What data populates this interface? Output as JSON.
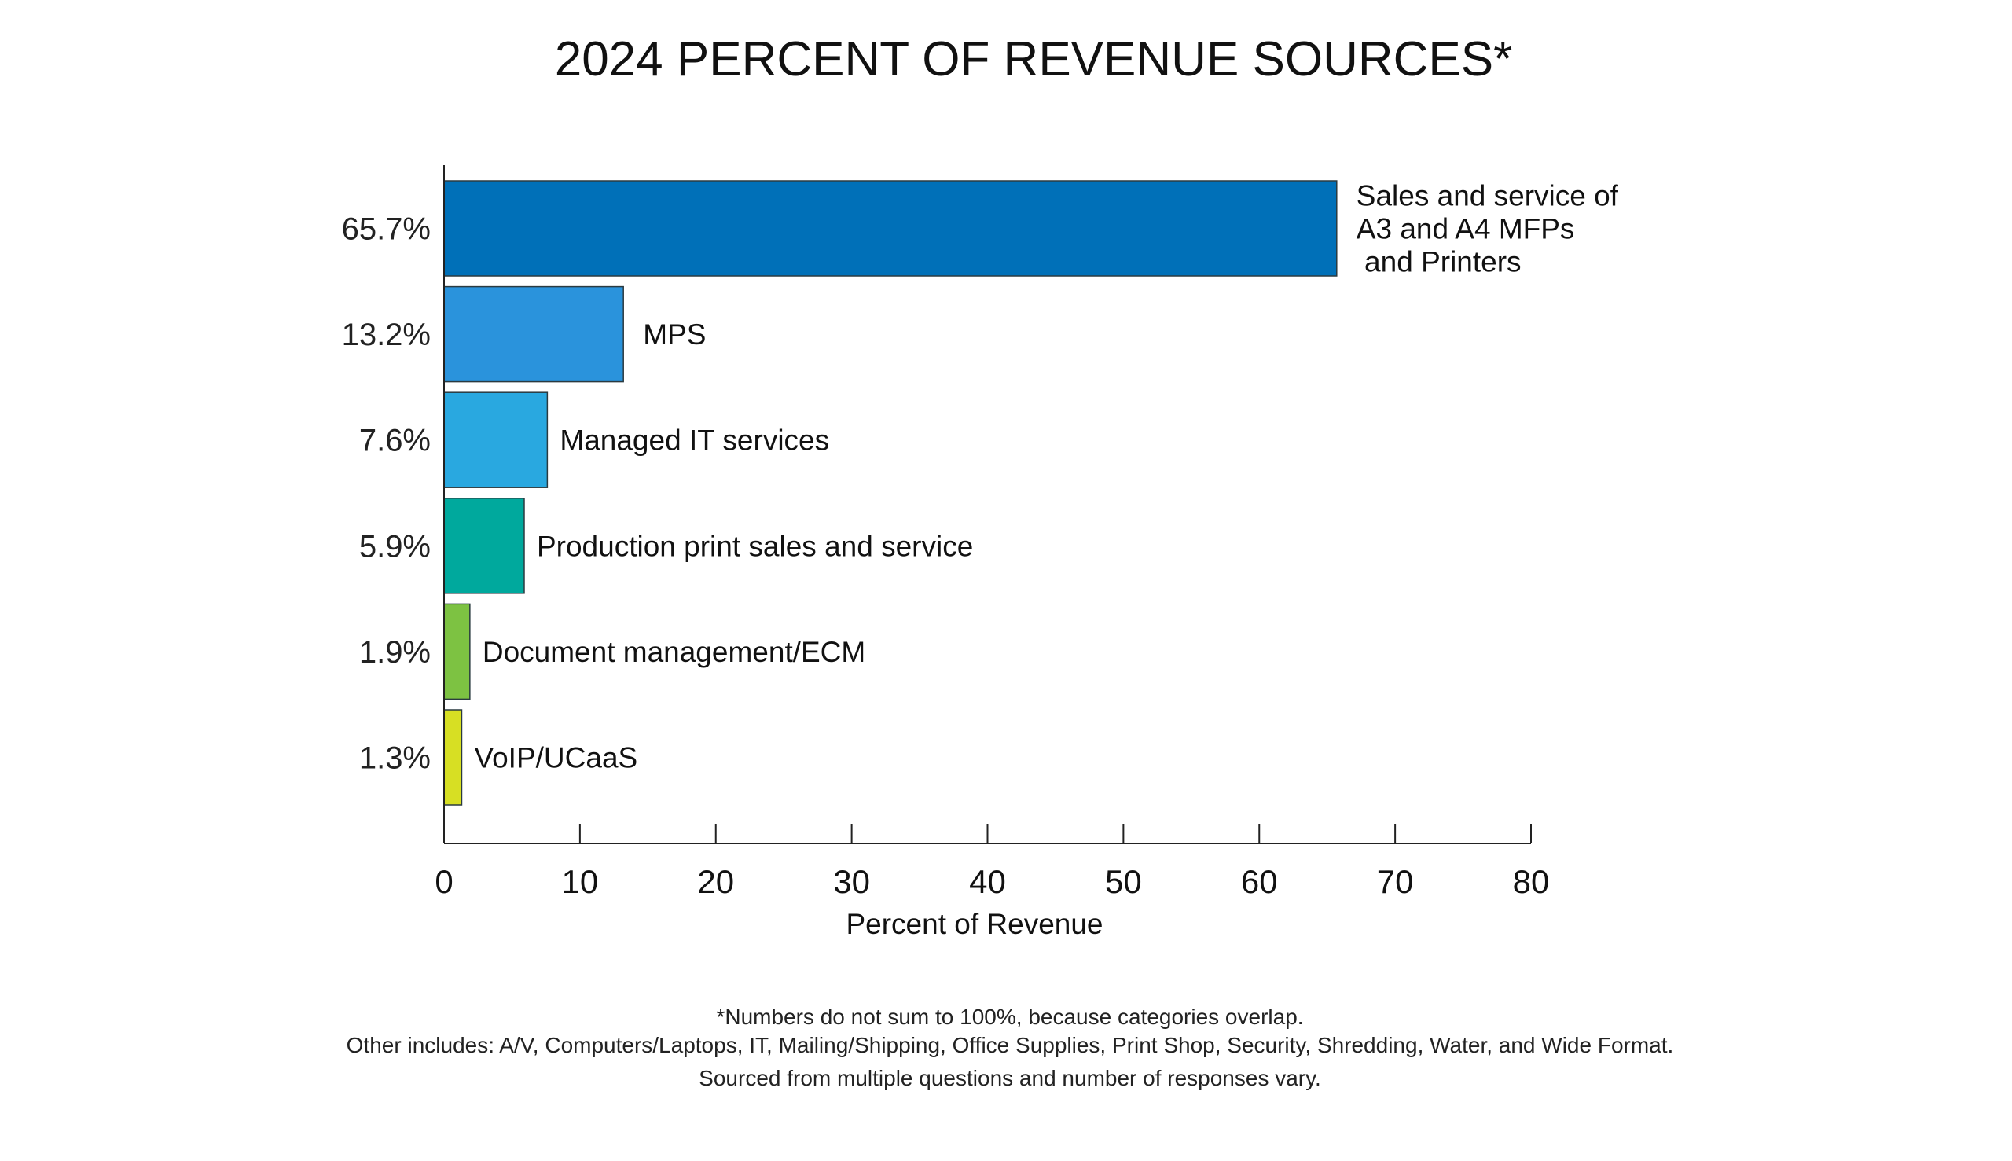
{
  "chart_data": {
    "type": "bar",
    "orientation": "horizontal",
    "title": "2024 PERCENT OF REVENUE SOURCES*",
    "xlabel": "Percent of Revenue",
    "ylabel": "",
    "xlim": [
      0,
      80
    ],
    "xticks": [
      0,
      10,
      20,
      30,
      40,
      50,
      60,
      70,
      80
    ],
    "grid": false,
    "categories": [
      [
        "Sales and service of",
        "A3 and A4 MFPs",
        " and Printers"
      ],
      [
        "MPS"
      ],
      [
        "Managed IT services"
      ],
      [
        "Production print sales and service"
      ],
      [
        "Document management/ECM"
      ],
      [
        "VoIP/UCaaS"
      ]
    ],
    "values": [
      65.7,
      13.2,
      7.6,
      5.9,
      1.9,
      1.3
    ],
    "value_labels": [
      "65.7%",
      "13.2%",
      "7.6%",
      "5.9%",
      "1.9%",
      "1.3%"
    ],
    "colors": [
      "#0070b8",
      "#2a93dc",
      "#29a8e0",
      "#00a99d",
      "#7dc242",
      "#d7df23"
    ],
    "footnotes": [
      "*Numbers do not sum to 100%, because categories overlap.",
      "Other includes: A/V, Computers/Laptops, IT, Mailing/Shipping, Office Supplies, Print Shop, Security, Shredding, Water, and Wide Format.",
      "Sourced from multiple questions and number of responses vary."
    ]
  }
}
